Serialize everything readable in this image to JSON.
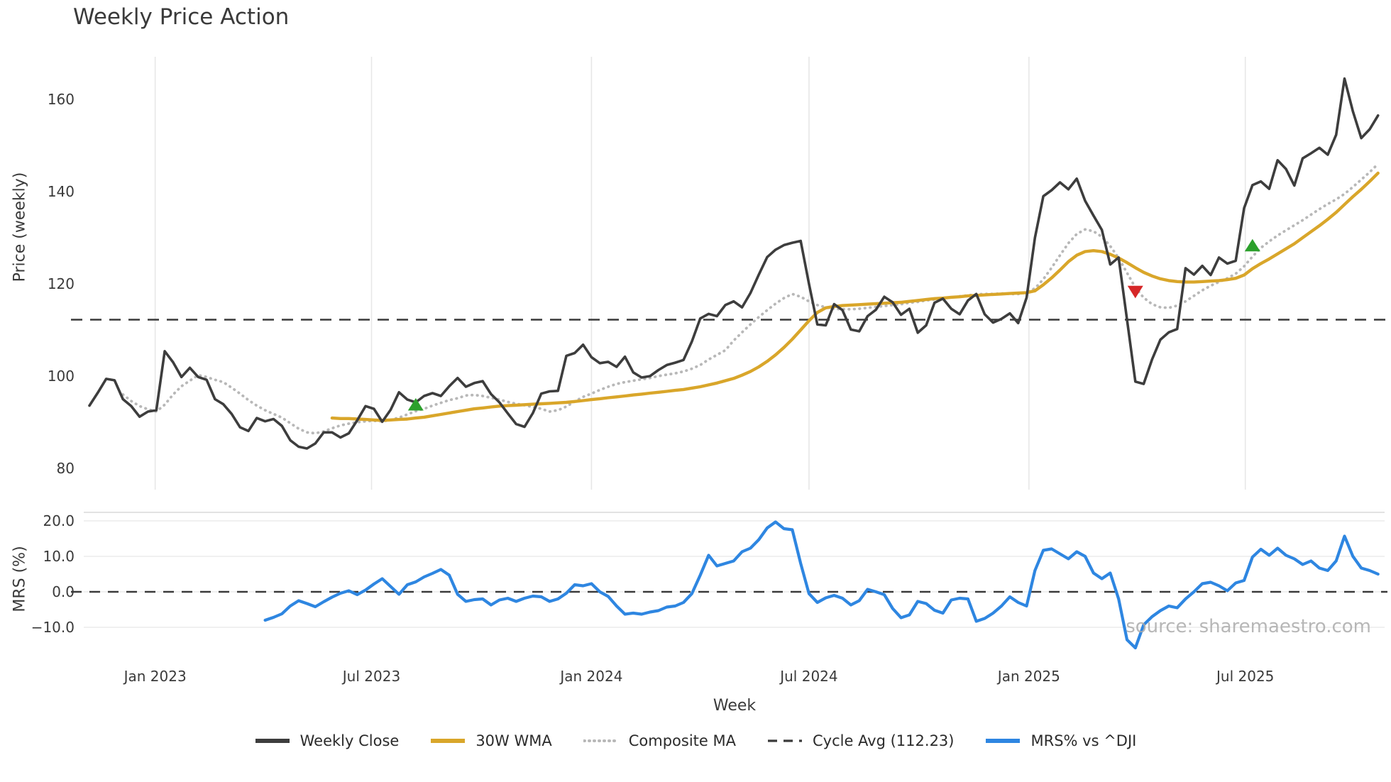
{
  "title": "Weekly Price Action",
  "watermark": "source: sharemaestro.com",
  "xlabel": "Week",
  "colors": {
    "close": "#3d3d3d",
    "wma": "#d9a62a",
    "composite": "#b8b8b8",
    "cycle_avg": "#3a3a3a",
    "mrs": "#2e86e1",
    "buy_marker": "#2ca02c",
    "sell_marker": "#d62728",
    "grid": "#e7e7e7",
    "panel_border": "#d8d8d8"
  },
  "legend": [
    {
      "label": "Weekly Close",
      "swatch": "solid-dark"
    },
    {
      "label": "30W WMA",
      "swatch": "solid-gold"
    },
    {
      "label": "Composite MA",
      "swatch": "dotted-gray"
    },
    {
      "label": "Cycle Avg (112.23)",
      "swatch": "dashed-dark"
    },
    {
      "label": "MRS% vs ^DJI",
      "swatch": "solid-blue"
    }
  ],
  "chart_data": {
    "type": "line",
    "start_date": "2022-11-07",
    "interval_days": 7,
    "x_ticks": [
      {
        "date": "2023-01-01",
        "label": "Jan 2023"
      },
      {
        "date": "2023-07-01",
        "label": "Jul 2023"
      },
      {
        "date": "2024-01-01",
        "label": "Jan 2024"
      },
      {
        "date": "2024-07-01",
        "label": "Jul 2024"
      },
      {
        "date": "2025-01-01",
        "label": "Jan 2025"
      },
      {
        "date": "2025-07-01",
        "label": "Jul 2025"
      }
    ],
    "price_panel": {
      "ylabel": "Price (weekly)",
      "ylim": [
        75.5,
        169.2
      ],
      "y_ticks": [
        {
          "v": 80,
          "label": "80"
        },
        {
          "v": 100,
          "label": "100"
        },
        {
          "v": 120,
          "label": "120"
        },
        {
          "v": 140,
          "label": "140"
        },
        {
          "v": 160,
          "label": "160"
        }
      ],
      "cycle_avg": 112.23,
      "series": [
        {
          "name": "Weekly Close",
          "style": "solid",
          "color_key": "close",
          "values": [
            93.6,
            96.4,
            99.4,
            99.1,
            95.0,
            93.5,
            91.2,
            92.3,
            92.6,
            105.4,
            103.0,
            99.8,
            101.8,
            99.8,
            99.2,
            95.0,
            93.9,
            91.8,
            88.9,
            88.1,
            90.9,
            90.2,
            90.7,
            89.2,
            86.1,
            84.7,
            84.3,
            85.4,
            87.8,
            87.8,
            86.7,
            87.6,
            90.4,
            93.5,
            92.9,
            90.1,
            92.7,
            96.5,
            94.9,
            94.3,
            95.7,
            96.3,
            95.7,
            97.8,
            99.6,
            97.7,
            98.5,
            98.9,
            96.1,
            94.3,
            91.9,
            89.6,
            89.0,
            92.0,
            96.2,
            96.7,
            96.8,
            104.4,
            105.0,
            106.8,
            104.1,
            102.8,
            103.1,
            102.0,
            104.2,
            100.8,
            99.7,
            100.0,
            101.3,
            102.4,
            102.9,
            103.5,
            107.5,
            112.5,
            113.5,
            113.0,
            115.4,
            116.2,
            114.9,
            118.0,
            122.0,
            125.8,
            127.4,
            128.4,
            128.9,
            129.3,
            120.0,
            111.2,
            111.0,
            115.6,
            114.3,
            110.1,
            109.7,
            113.0,
            114.4,
            117.2,
            116.0,
            113.3,
            114.6,
            109.4,
            111.0,
            115.9,
            116.8,
            114.6,
            113.4,
            116.4,
            117.8,
            113.4,
            111.6,
            112.4,
            113.6,
            111.5,
            117.0,
            130.0,
            139.0,
            140.3,
            142.0,
            140.5,
            142.8,
            138.0,
            134.8,
            131.7,
            124.2,
            125.7,
            112.3,
            98.8,
            98.3,
            103.6,
            107.9,
            109.5,
            110.2,
            123.4,
            122.0,
            123.9,
            121.9,
            125.7,
            124.4,
            125.0,
            136.4,
            141.4,
            142.2,
            140.6,
            146.8,
            144.9,
            141.3,
            147.2,
            148.3,
            149.5,
            148.0,
            152.3,
            164.5,
            157.4,
            151.6,
            153.5,
            156.5
          ]
        },
        {
          "name": "30W WMA",
          "style": "solid",
          "color_key": "wma",
          "values": [
            null,
            null,
            null,
            null,
            null,
            null,
            null,
            null,
            null,
            null,
            null,
            null,
            null,
            null,
            null,
            null,
            null,
            null,
            null,
            null,
            null,
            null,
            null,
            null,
            null,
            null,
            null,
            null,
            null,
            90.9,
            90.8,
            90.8,
            90.7,
            90.6,
            90.5,
            90.4,
            90.5,
            90.6,
            90.7,
            90.9,
            91.1,
            91.4,
            91.7,
            92.0,
            92.3,
            92.6,
            92.9,
            93.1,
            93.3,
            93.5,
            93.6,
            93.7,
            93.8,
            93.9,
            94.0,
            94.1,
            94.2,
            94.3,
            94.5,
            94.7,
            94.9,
            95.1,
            95.3,
            95.5,
            95.7,
            95.9,
            96.1,
            96.3,
            96.5,
            96.7,
            96.9,
            97.1,
            97.4,
            97.7,
            98.1,
            98.5,
            99.0,
            99.5,
            100.2,
            101.0,
            102.0,
            103.2,
            104.6,
            106.2,
            108.0,
            110.0,
            112.0,
            113.8,
            114.8,
            115.1,
            115.3,
            115.4,
            115.5,
            115.6,
            115.7,
            115.8,
            115.9,
            116.0,
            116.2,
            116.4,
            116.6,
            116.8,
            116.9,
            117.1,
            117.2,
            117.4,
            117.5,
            117.6,
            117.7,
            117.8,
            117.9,
            118.0,
            118.1,
            118.5,
            119.8,
            121.3,
            123.0,
            124.8,
            126.2,
            127.0,
            127.2,
            127.0,
            126.4,
            125.6,
            124.6,
            123.5,
            122.5,
            121.7,
            121.1,
            120.7,
            120.5,
            120.4,
            120.4,
            120.5,
            120.6,
            120.7,
            120.9,
            121.2,
            121.9,
            123.3,
            124.4,
            125.4,
            126.5,
            127.6,
            128.7,
            130.0,
            131.3,
            132.6,
            134.0,
            135.5,
            137.2,
            138.9,
            140.5,
            142.2,
            144.0
          ]
        },
        {
          "name": "Composite MA",
          "style": "dotted",
          "color_key": "composite",
          "values": [
            null,
            null,
            null,
            null,
            96.0,
            94.6,
            93.5,
            92.8,
            92.3,
            93.8,
            96.0,
            97.8,
            99.0,
            100.2,
            99.8,
            99.2,
            98.7,
            97.5,
            96.2,
            94.8,
            93.6,
            92.6,
            91.8,
            91.0,
            89.8,
            88.6,
            87.8,
            87.6,
            88.0,
            88.7,
            89.3,
            89.7,
            90.0,
            90.2,
            90.3,
            90.2,
            90.5,
            91.0,
            91.7,
            92.4,
            92.9,
            93.6,
            94.2,
            94.8,
            95.2,
            95.8,
            95.9,
            95.7,
            95.3,
            94.9,
            94.4,
            94.0,
            93.7,
            93.3,
            92.9,
            92.3,
            92.6,
            93.4,
            94.5,
            95.5,
            96.2,
            97.0,
            97.7,
            98.3,
            98.7,
            99.0,
            99.3,
            99.6,
            100.0,
            100.3,
            100.6,
            101.0,
            101.6,
            102.4,
            103.6,
            104.6,
            105.6,
            107.7,
            109.5,
            111.2,
            112.8,
            114.3,
            115.7,
            116.9,
            117.8,
            117.2,
            116.2,
            115.4,
            114.9,
            114.6,
            114.5,
            114.5,
            114.6,
            114.8,
            115.0,
            115.2,
            115.4,
            115.6,
            115.9,
            116.1,
            116.4,
            116.6,
            116.9,
            117.1,
            117.3,
            117.5,
            117.7,
            117.8,
            117.8,
            117.9,
            117.8,
            117.8,
            118.2,
            119.0,
            121.0,
            123.5,
            126.2,
            128.8,
            130.8,
            131.8,
            131.4,
            130.2,
            128.2,
            125.6,
            122.4,
            119.2,
            117.0,
            115.6,
            114.9,
            114.8,
            115.3,
            116.2,
            117.4,
            118.6,
            119.6,
            120.4,
            121.2,
            122.2,
            123.8,
            125.9,
            127.8,
            129.2,
            130.5,
            131.6,
            132.7,
            133.8,
            135.0,
            136.2,
            137.3,
            138.3,
            139.5,
            141.0,
            142.6,
            144.2,
            146.0
          ]
        }
      ],
      "markers": [
        {
          "shape": "triangle-up",
          "color_key": "buy_marker",
          "date": "2023-08-07",
          "value": 93.8
        },
        {
          "shape": "triangle-down",
          "color_key": "sell_marker",
          "date": "2025-03-31",
          "value": 118.3
        },
        {
          "shape": "triangle-up",
          "color_key": "buy_marker",
          "date": "2025-07-07",
          "value": 128.3
        }
      ]
    },
    "mrs_panel": {
      "ylabel": "MRS (%)",
      "ylim": [
        -17.4,
        22.4
      ],
      "y_ticks": [
        {
          "v": -10,
          "label": "−10.0"
        },
        {
          "v": 0,
          "label": "0.0"
        },
        {
          "v": 10,
          "label": "10.0"
        },
        {
          "v": 20,
          "label": "20.0"
        }
      ],
      "zero_line": 0,
      "series": [
        {
          "name": "MRS% vs ^DJI",
          "style": "solid",
          "color_key": "mrs",
          "values": [
            null,
            null,
            null,
            null,
            null,
            null,
            null,
            null,
            null,
            null,
            null,
            null,
            null,
            null,
            null,
            null,
            null,
            null,
            null,
            null,
            null,
            -8.0,
            -7.2,
            -6.2,
            -4.0,
            -2.5,
            -3.3,
            -4.2,
            -2.8,
            -1.5,
            -0.4,
            0.3,
            -0.8,
            0.5,
            2.2,
            3.7,
            1.5,
            -0.7,
            2.0,
            2.8,
            4.2,
            5.2,
            6.3,
            4.7,
            -0.7,
            -2.7,
            -2.2,
            -2.0,
            -3.7,
            -2.3,
            -1.8,
            -2.7,
            -1.8,
            -1.2,
            -1.4,
            -2.7,
            -2.0,
            -0.4,
            2.0,
            1.7,
            2.3,
            0.0,
            -1.3,
            -4.0,
            -6.3,
            -6.0,
            -6.3,
            -5.7,
            -5.3,
            -4.3,
            -4.0,
            -3.0,
            -0.5,
            4.7,
            10.3,
            7.3,
            8.0,
            8.7,
            11.3,
            12.3,
            14.7,
            18.0,
            19.7,
            17.8,
            17.5,
            8.0,
            -0.5,
            -3.0,
            -1.7,
            -1.0,
            -1.8,
            -3.7,
            -2.5,
            0.7,
            0.0,
            -0.8,
            -4.7,
            -7.3,
            -6.5,
            -2.7,
            -3.3,
            -5.2,
            -6.0,
            -2.3,
            -1.8,
            -2.0,
            -8.3,
            -7.5,
            -6.0,
            -4.0,
            -1.4,
            -3.0,
            -4.0,
            6.0,
            11.7,
            12.1,
            10.7,
            9.3,
            11.3,
            10.0,
            5.3,
            3.7,
            5.3,
            -2.0,
            -13.5,
            -15.8,
            -9.3,
            -7.0,
            -5.3,
            -4.0,
            -4.5,
            -2.0,
            0.0,
            2.3,
            2.7,
            1.7,
            0.3,
            2.5,
            3.2,
            9.8,
            12.0,
            10.3,
            12.3,
            10.3,
            9.3,
            7.7,
            8.7,
            6.7,
            6.0,
            8.7,
            15.7,
            10.0,
            6.7,
            6.0,
            5.0
          ]
        }
      ]
    }
  }
}
